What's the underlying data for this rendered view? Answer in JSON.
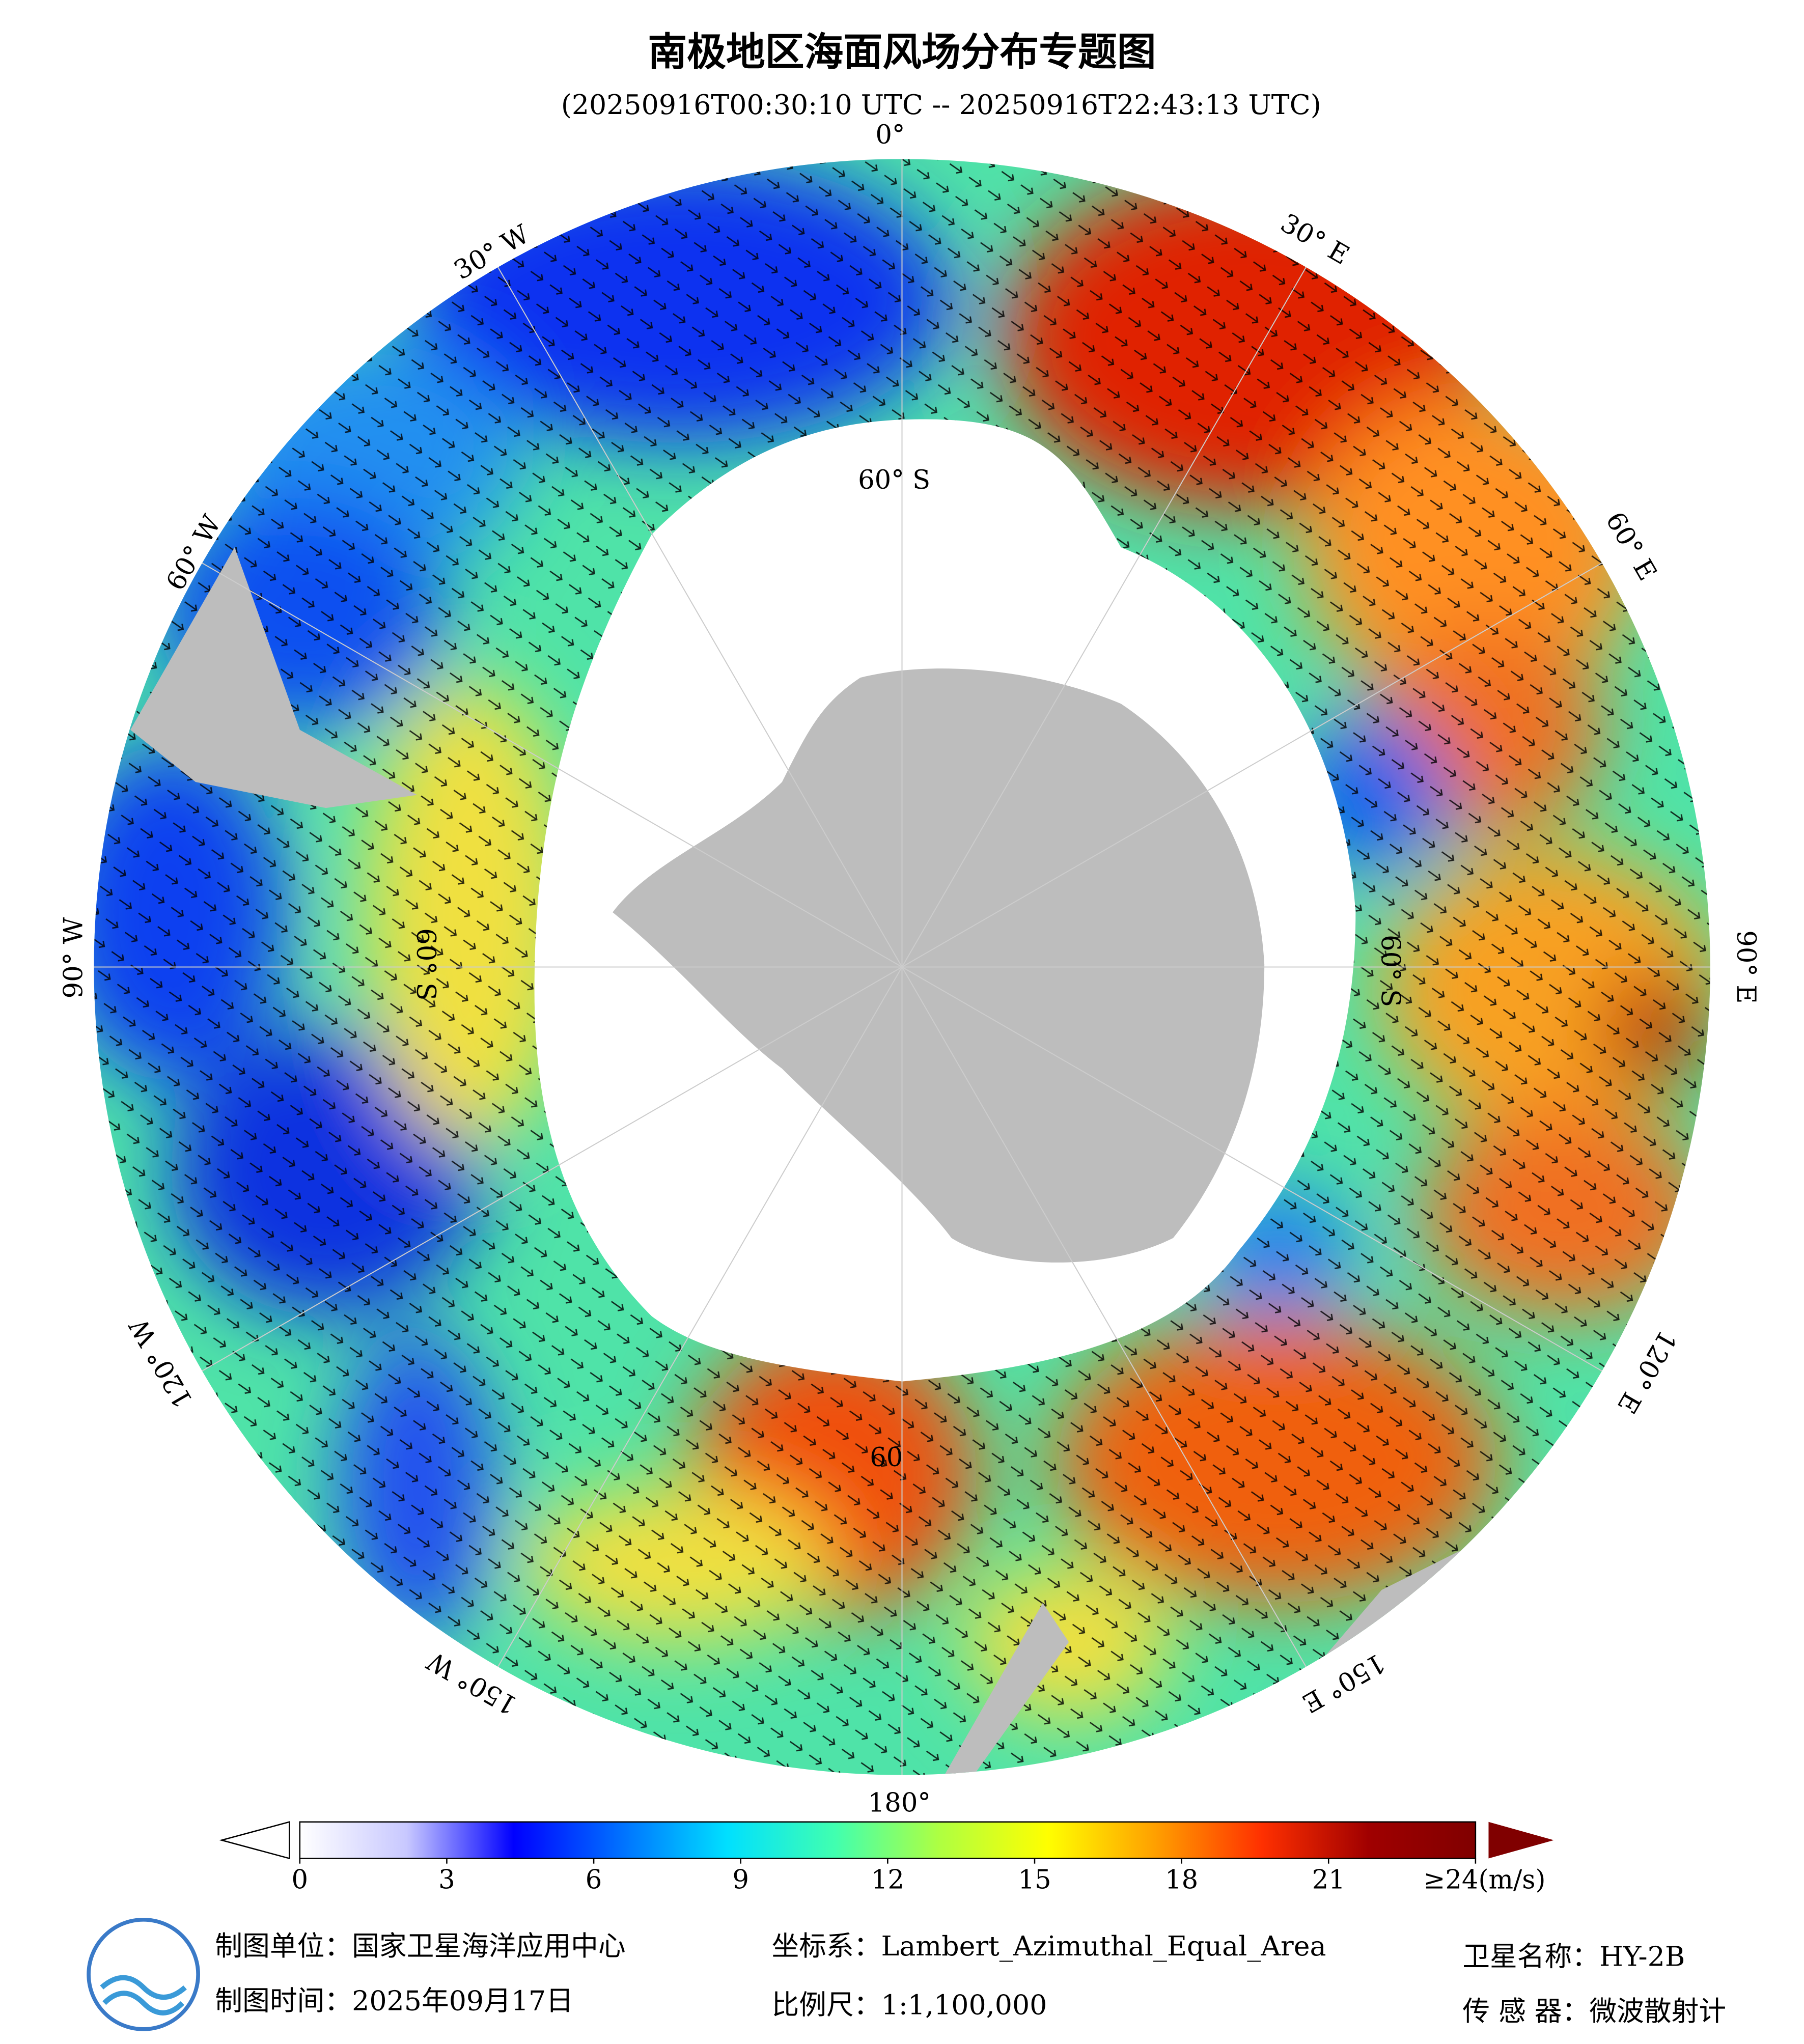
{
  "title": "南极地区海面风场分布专题图",
  "subtitle": "(20250916T00:30:10 UTC -- 20250916T22:43:13 UTC)",
  "map": {
    "lon_labels": [
      "0°",
      "30° E",
      "60° E",
      "90° E",
      "120° E",
      "150° E",
      "180°",
      "150° W",
      "120° W",
      "90° W",
      "60° W",
      "30° W"
    ],
    "lat_labels": [
      "60° S",
      "60° S",
      "60° S",
      "60"
    ]
  },
  "colorbar": {
    "range": [
      0,
      24
    ],
    "ticks": [
      0,
      3,
      6,
      9,
      12,
      15,
      18,
      21,
      {
        "value": 24,
        "label": "≥24(m/s)"
      }
    ],
    "colors": [
      "#ffffff",
      "#c8c8ff",
      "#0000ff",
      "#0070ff",
      "#00e0ff",
      "#40ffb0",
      "#b0ff40",
      "#ffff00",
      "#ffa000",
      "#ff3000",
      "#a00000",
      "#800000"
    ]
  },
  "footer": {
    "unit": "制图单位：国家卫星海洋应用中心",
    "date": "制图时间：2025年09月17日",
    "crs": "坐标系：Lambert_Azimuthal_Equal_Area",
    "scale": "比例尺：1:1,100,000",
    "satellite": "卫星名称：HY-2B",
    "sensor": "传 感 器：微波散射计"
  }
}
